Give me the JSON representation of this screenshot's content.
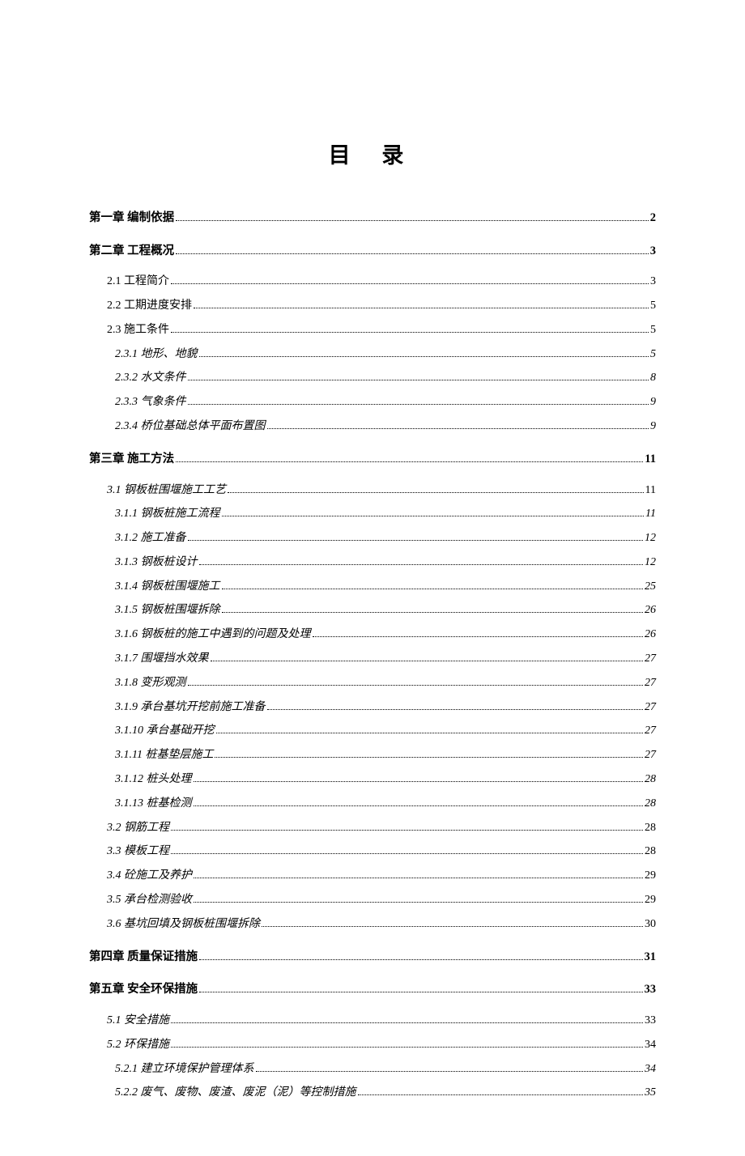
{
  "title": "目 录",
  "entries": [
    {
      "level": 1,
      "label": "第一章 编制依据",
      "page": "2",
      "italic": false
    },
    {
      "level": 1,
      "label": "第二章 工程概况",
      "page": "3",
      "italic": false
    },
    {
      "level": 2,
      "label": "2.1 工程简介",
      "page": "3",
      "italic": false
    },
    {
      "level": 2,
      "label": "2.2 工期进度安排",
      "page": "5",
      "italic": false
    },
    {
      "level": 2,
      "label": "2.3 施工条件",
      "page": "5",
      "italic": false
    },
    {
      "level": 3,
      "label": "2.3.1 地形、地貌",
      "page": "5",
      "italic": true
    },
    {
      "level": 3,
      "label": "2.3.2 水文条件",
      "page": "8",
      "italic": true
    },
    {
      "level": 3,
      "label": "2.3.3 气象条件",
      "page": "9",
      "italic": true
    },
    {
      "level": 3,
      "label": "2.3.4 桥位基础总体平面布置图",
      "page": "9",
      "italic": true
    },
    {
      "level": 1,
      "label": "第三章 施工方法",
      "page": "11",
      "italic": false
    },
    {
      "level": 2,
      "label": "3.1 钢板桩围堰施工工艺",
      "page": "11",
      "italic": true
    },
    {
      "level": 3,
      "label": "3.1.1 钢板桩施工流程",
      "page": "11",
      "italic": true
    },
    {
      "level": 3,
      "label": "3.1.2 施工准备",
      "page": "12",
      "italic": true
    },
    {
      "level": 3,
      "label": "3.1.3 钢板桩设计",
      "page": "12",
      "italic": true
    },
    {
      "level": 3,
      "label": "3.1.4 钢板桩围堰施工",
      "page": "25",
      "italic": true
    },
    {
      "level": 3,
      "label": "3.1.5 钢板桩围堰拆除",
      "page": "26",
      "italic": true
    },
    {
      "level": 3,
      "label": "3.1.6 钢板桩的施工中遇到的问题及处理",
      "page": "26",
      "italic": true
    },
    {
      "level": 3,
      "label": "3.1.7 围堰挡水效果",
      "page": "27",
      "italic": true
    },
    {
      "level": 3,
      "label": "3.1.8 变形观测",
      "page": "27",
      "italic": true
    },
    {
      "level": 3,
      "label": "3.1.9 承台基坑开挖前施工准备",
      "page": "27",
      "italic": true
    },
    {
      "level": 3,
      "label": "3.1.10 承台基础开挖",
      "page": "27",
      "italic": true
    },
    {
      "level": 3,
      "label": "3.1.11 桩基垫层施工",
      "page": "27",
      "italic": true
    },
    {
      "level": 3,
      "label": "3.1.12 桩头处理",
      "page": "28",
      "italic": true
    },
    {
      "level": 3,
      "label": "3.1.13 桩基检测",
      "page": "28",
      "italic": true
    },
    {
      "level": 2,
      "label": "3.2 钢筋工程",
      "page": "28",
      "italic": true
    },
    {
      "level": 2,
      "label": "3.3 模板工程",
      "page": "28",
      "italic": true
    },
    {
      "level": 2,
      "label": "3.4 砼施工及养护",
      "page": "29",
      "italic": true
    },
    {
      "level": 2,
      "label": "3.5 承台检测验收",
      "page": "29",
      "italic": true
    },
    {
      "level": 2,
      "label": "3.6 基坑回填及钢板桩围堰拆除",
      "page": "30",
      "italic": true
    },
    {
      "level": 1,
      "label": "第四章   质量保证措施",
      "page": "31",
      "italic": false
    },
    {
      "level": 1,
      "label": "第五章   安全环保措施",
      "page": "33",
      "italic": false
    },
    {
      "level": 2,
      "label": "5.1 安全措施",
      "page": "33",
      "italic": true
    },
    {
      "level": 2,
      "label": "5.2 环保措施",
      "page": "34",
      "italic": true
    },
    {
      "level": 3,
      "label": "5.2.1 建立环境保护管理体系",
      "page": "34",
      "italic": true
    },
    {
      "level": 3,
      "label": "5.2.2 废气、废物、废渣、废泥（泥）等控制措施",
      "page": "35",
      "italic": true
    }
  ],
  "styles": {
    "background_color": "#ffffff",
    "text_color": "#000000",
    "title_fontsize": 27,
    "entry_fontsize": 14,
    "font_family": "SimSun"
  }
}
